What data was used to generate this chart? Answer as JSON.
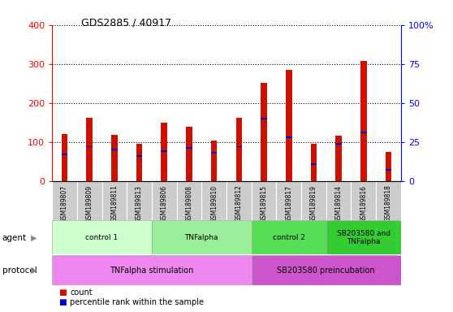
{
  "title": "GDS2885 / 40917",
  "samples": [
    "GSM189807",
    "GSM189809",
    "GSM189811",
    "GSM189813",
    "GSM189806",
    "GSM189808",
    "GSM189810",
    "GSM189812",
    "GSM189815",
    "GSM189817",
    "GSM189819",
    "GSM189814",
    "GSM189816",
    "GSM189818"
  ],
  "counts": [
    120,
    162,
    118,
    96,
    150,
    140,
    104,
    162,
    252,
    284,
    96,
    116,
    308,
    75
  ],
  "percentile_ranks": [
    17,
    22,
    20,
    16,
    19,
    21,
    18,
    22,
    40,
    28,
    11,
    24,
    31,
    7
  ],
  "ylim_left": [
    0,
    400
  ],
  "ylim_right": [
    0,
    100
  ],
  "yticks_left": [
    0,
    100,
    200,
    300,
    400
  ],
  "yticks_right": [
    0,
    25,
    50,
    75,
    100
  ],
  "bar_color": "#cc1100",
  "percentile_color": "#0000cc",
  "bar_width": 0.25,
  "percentile_square_size": 0.25,
  "agent_groups": [
    {
      "label": "control 1",
      "start": 0,
      "end": 3,
      "color": "#ccffcc"
    },
    {
      "label": "TNFalpha",
      "start": 4,
      "end": 7,
      "color": "#99ee99"
    },
    {
      "label": "control 2",
      "start": 8,
      "end": 10,
      "color": "#55dd55"
    },
    {
      "label": "SB203580 and\nTNFalpha",
      "start": 11,
      "end": 13,
      "color": "#33cc33"
    }
  ],
  "protocol_groups": [
    {
      "label": "TNFalpha stimulation",
      "start": 0,
      "end": 7,
      "color": "#ee88ee"
    },
    {
      "label": "SB203580 preincubation",
      "start": 8,
      "end": 13,
      "color": "#cc55cc"
    }
  ],
  "agent_label": "agent",
  "protocol_label": "protocol",
  "legend_count_label": "count",
  "legend_percentile_label": "percentile rank within the sample"
}
